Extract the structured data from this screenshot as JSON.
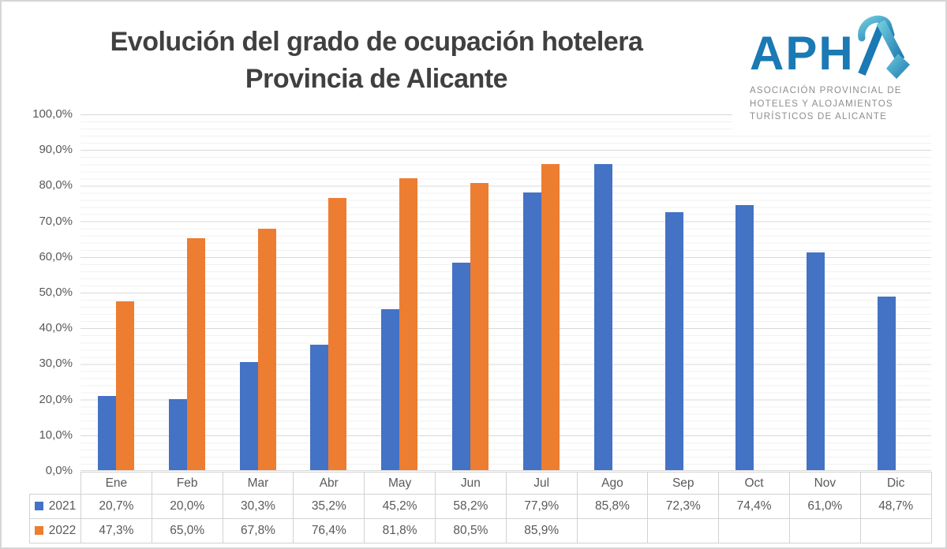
{
  "title": {
    "line1": "Evolución del grado de ocupación hotelera",
    "line2": "Provincia de Alicante"
  },
  "logo": {
    "brand_prefix": "APH",
    "brand_suffix": "A",
    "subtitle_lines": [
      "ASOCIACIÓN PROVINCIAL DE",
      "HOTELES Y ALOJAMIENTOS",
      "TURÍSTICOS DE ALICANTE"
    ],
    "brand_color": "#1b79b4",
    "teal_color": "#5fc2d7"
  },
  "chart_data": {
    "type": "bar",
    "title": "Evolución del grado de ocupación hotelera Provincia de Alicante",
    "categories": [
      "Ene",
      "Feb",
      "Mar",
      "Abr",
      "May",
      "Jun",
      "Jul",
      "Ago",
      "Sep",
      "Oct",
      "Nov",
      "Dic"
    ],
    "series": [
      {
        "name": "2021",
        "color": "#4472C4",
        "values": [
          20.7,
          20.0,
          30.3,
          35.2,
          45.2,
          58.2,
          77.9,
          85.8,
          72.3,
          74.4,
          61.0,
          48.7
        ],
        "labels": [
          "20,7%",
          "20,0%",
          "30,3%",
          "35,2%",
          "45,2%",
          "58,2%",
          "77,9%",
          "85,8%",
          "72,3%",
          "74,4%",
          "61,0%",
          "48,7%"
        ]
      },
      {
        "name": "2022",
        "color": "#ED7D31",
        "values": [
          47.3,
          65.0,
          67.8,
          76.4,
          81.8,
          80.5,
          85.9,
          null,
          null,
          null,
          null,
          null
        ],
        "labels": [
          "47,3%",
          "65,0%",
          "67,8%",
          "76,4%",
          "81,8%",
          "80,5%",
          "85,9%",
          "",
          "",
          "",
          "",
          ""
        ]
      }
    ],
    "xlabel": "",
    "ylabel": "",
    "ylim": [
      0,
      100
    ],
    "y_ticks": [
      "100,0%",
      "90,0%",
      "80,0%",
      "70,0%",
      "60,0%",
      "50,0%",
      "40,0%",
      "30,0%",
      "20,0%",
      "10,0%",
      "0,0%"
    ],
    "grid": {
      "major_step_pct": 10,
      "minor_step_pct": 2,
      "major_color": "#d8d8d8",
      "minor_color": "#f1f1f1"
    },
    "legend_position": "data-table-left"
  },
  "colors": {
    "title_text": "#404040",
    "axis_text": "#595959",
    "table_border": "#d2d2d2",
    "page_border": "#d6d6d6"
  }
}
